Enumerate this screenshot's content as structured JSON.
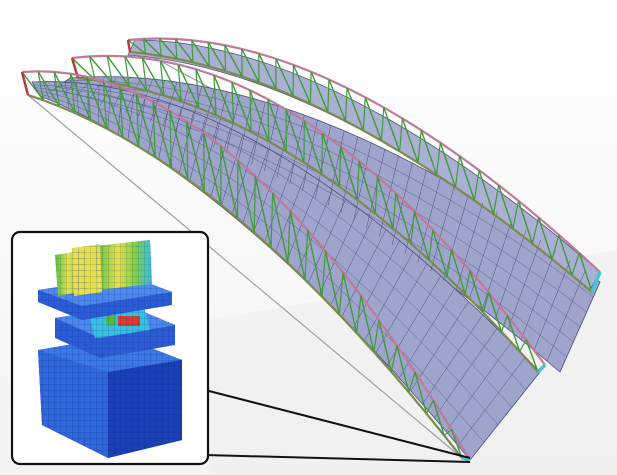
{
  "colors": {
    "deck_fill": "#9ea4cc",
    "deck_grid": "#4a4f78",
    "truss_chord": "#7c8a4e",
    "truss_web": "#3f9a3a",
    "top_chord_tint": "#c07a9a",
    "support_post": "#40c8d0",
    "hanger": "#b04040",
    "inset_frame": "#111111",
    "fem_blue": "#2b5cd8",
    "fem_deep_blue": "#1a3fb8",
    "fem_cyan": "#38c0e0",
    "fem_green": "#4fbf3a",
    "fem_yellow": "#e8e04a",
    "fem_red": "#e03a2a"
  },
  "scene": {
    "subject": "arched-truss-roof-model",
    "truss_count": 3,
    "deck_count": 2,
    "inset": "support-bearing-fem-detail"
  }
}
